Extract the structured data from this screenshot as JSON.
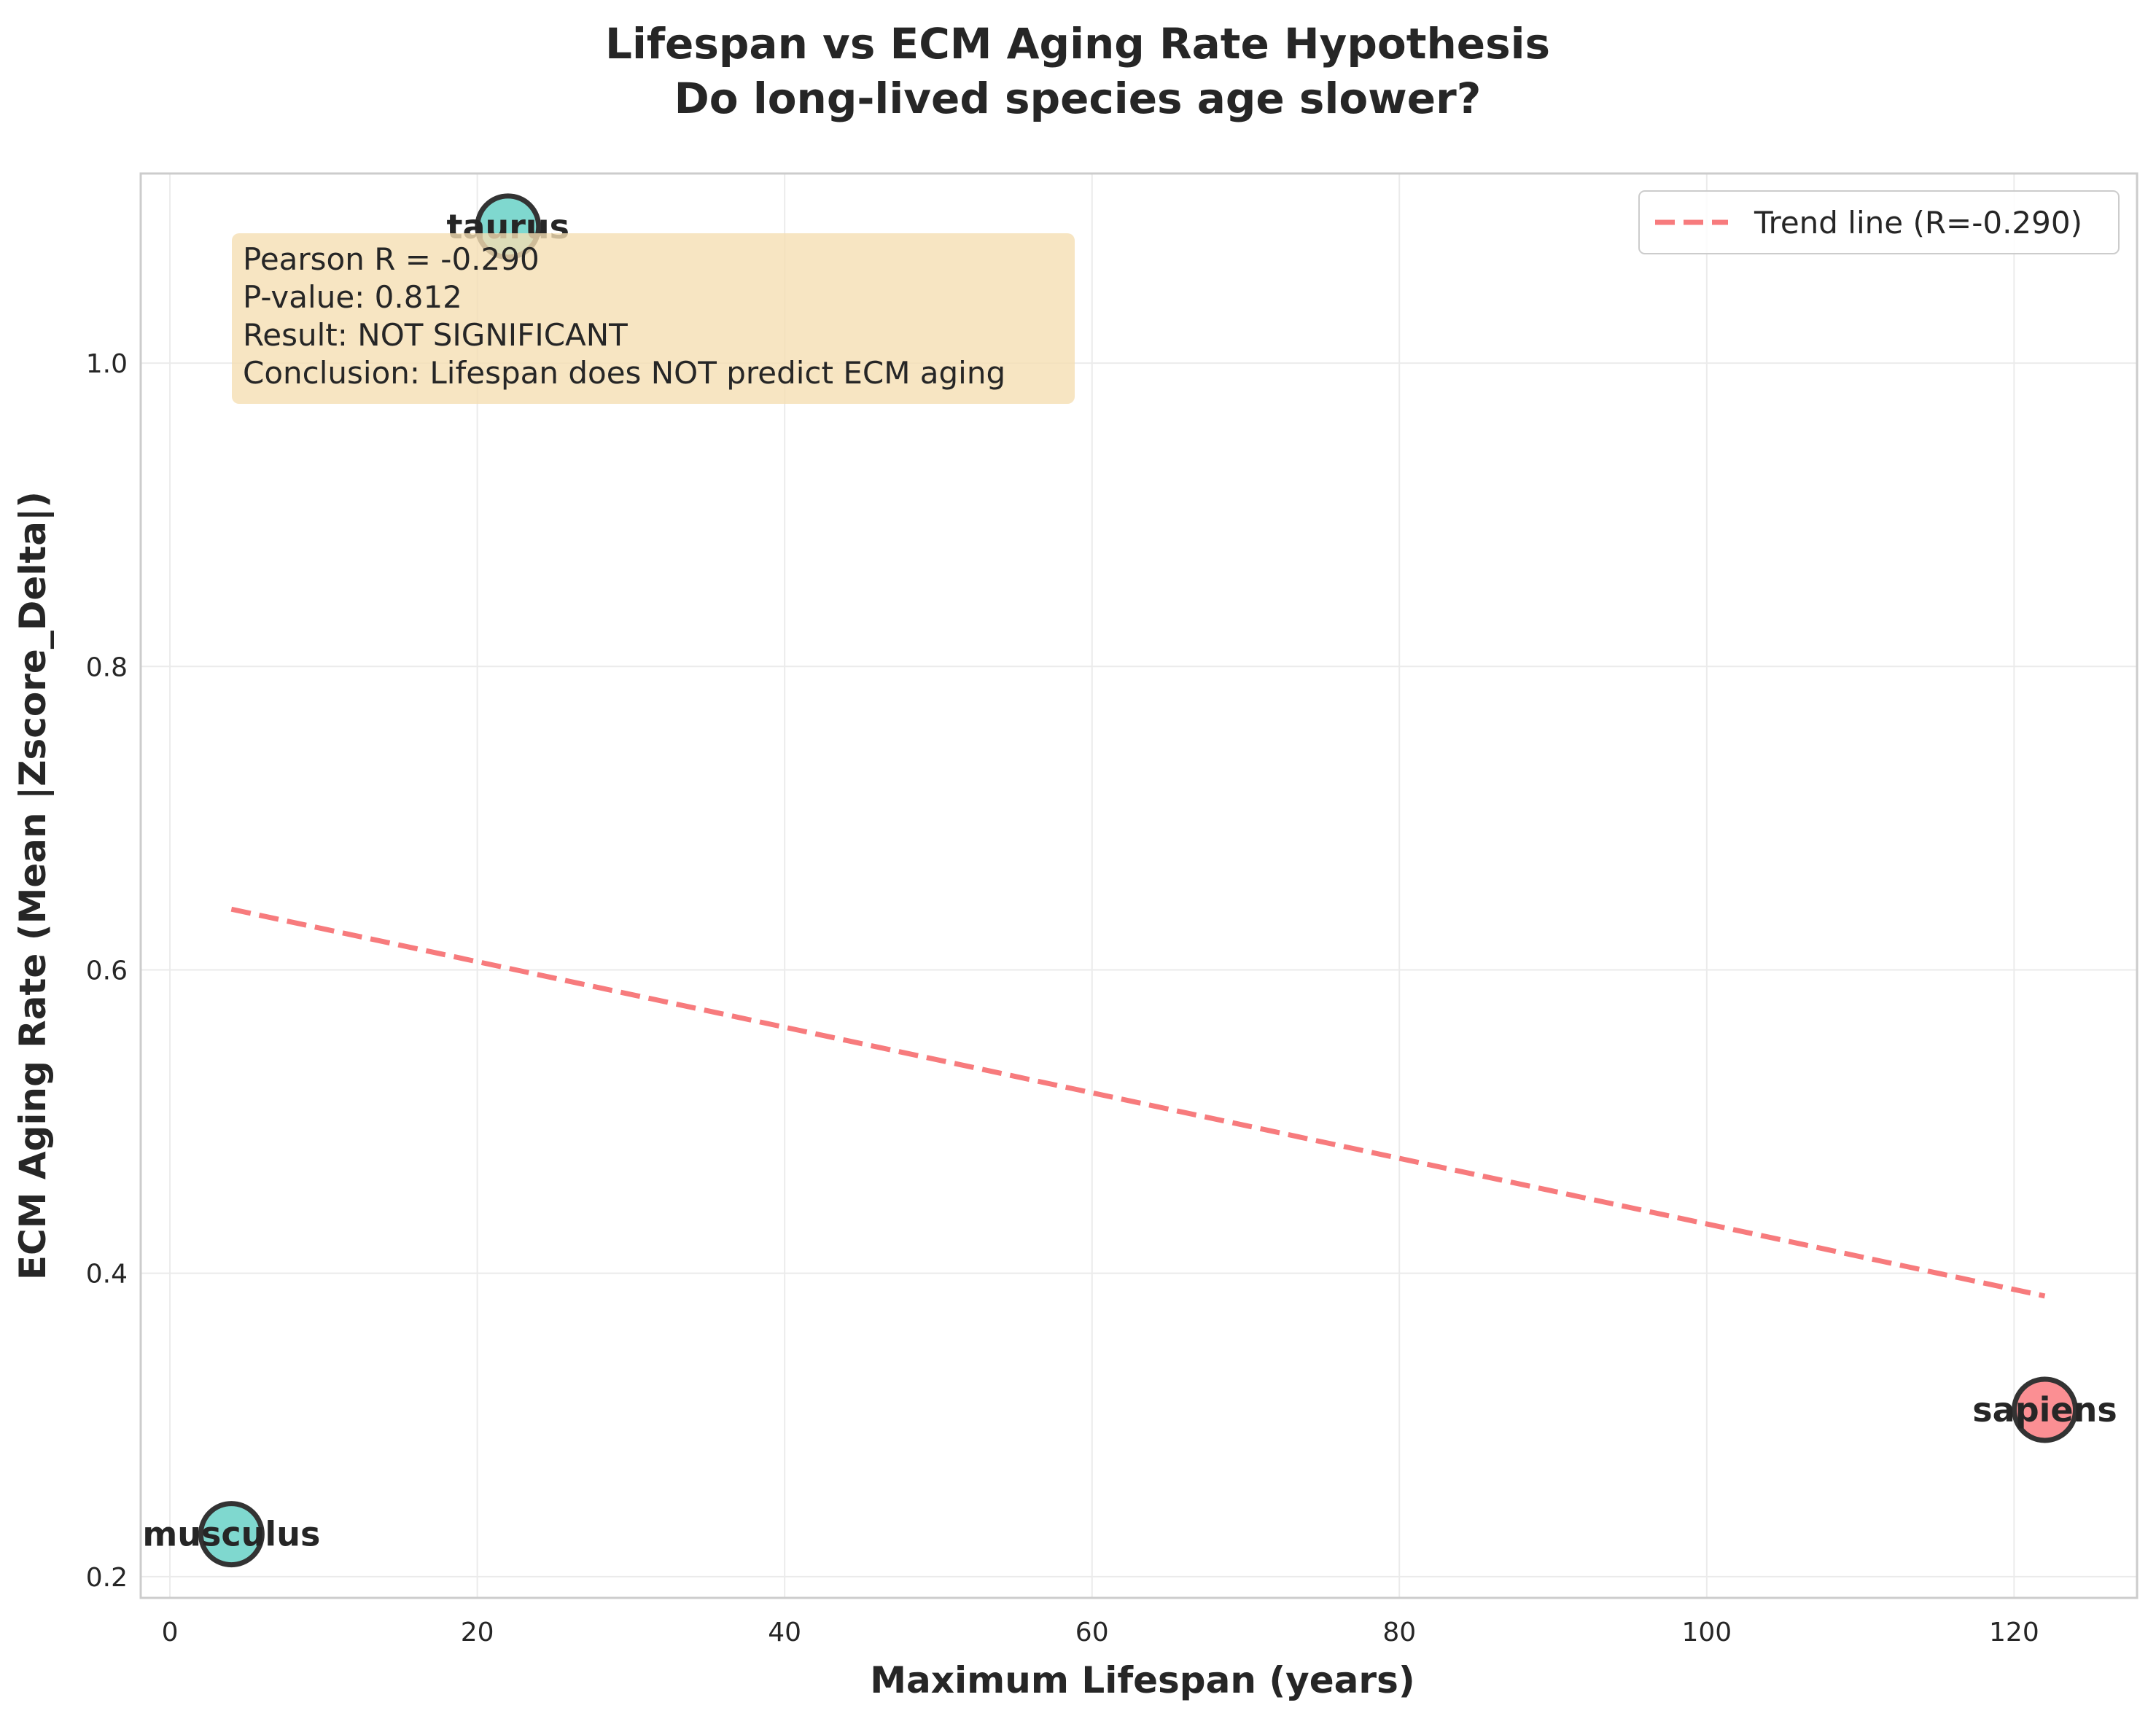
{
  "chart_data": {
    "type": "scatter",
    "title": "Lifespan vs ECM Aging Rate Hypothesis",
    "subtitle": "Do long-lived species age slower?",
    "xlabel": "Maximum Lifespan (years)",
    "ylabel": "ECM Aging Rate (Mean |Zscore_Delta|)",
    "xlim": [
      -1.9,
      128
    ],
    "ylim": [
      0.186,
      1.125
    ],
    "xticks": [
      0,
      20,
      40,
      60,
      80,
      100,
      120
    ],
    "yticks": [
      0.2,
      0.4,
      0.6,
      0.8,
      1.0
    ],
    "xtick_labels": [
      "0",
      "20",
      "40",
      "60",
      "80",
      "100",
      "120"
    ],
    "ytick_labels": [
      "0.2",
      "0.4",
      "0.6",
      "0.8",
      "1.0"
    ],
    "grid": true,
    "legend_position": "top-right",
    "points": [
      {
        "label": "musculus",
        "x": 4,
        "y": 0.228,
        "color": "#7fd8cf"
      },
      {
        "label": "taurus",
        "x": 22,
        "y": 1.09,
        "color": "#7fd8cf"
      },
      {
        "label": "sapiens",
        "x": 122,
        "y": 0.31,
        "color": "#fb8f93"
      }
    ],
    "trend_line": {
      "name": "Trend line (R=-0.290)",
      "x": [
        4,
        122
      ],
      "y": [
        0.64,
        0.385
      ],
      "color": "#f77b7d"
    },
    "stats_box": {
      "lines": [
        "Pearson R = -0.290",
        "P-value: 0.812",
        "Result: NOT SIGNIFICANT",
        "Conclusion: Lifespan does NOT predict ECM aging"
      ],
      "color": "#f5deb3"
    }
  }
}
